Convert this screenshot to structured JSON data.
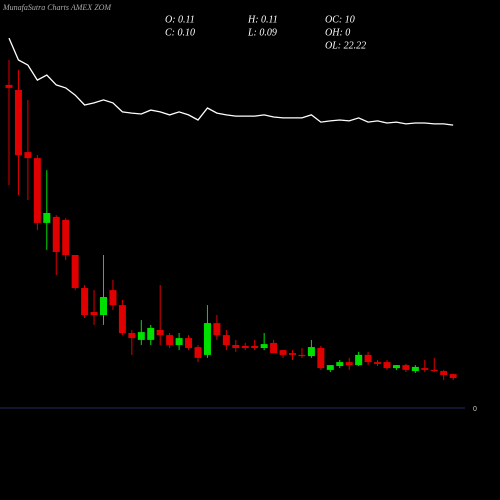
{
  "chart_data": {
    "type": "candlestick",
    "title": "MunafaSutra Charts AMEX  ZOM",
    "stats": [
      [
        "O: 0.11",
        "C: 0.10"
      ],
      [
        "H: 0.11",
        "L: 0.09"
      ],
      [
        "OC: 10",
        "OH: 0",
        "OL: 22.22"
      ]
    ],
    "ylim": [
      0,
      1.3
    ],
    "yticks": [
      0
    ],
    "up_color": "#00e000",
    "down_color": "#e00000",
    "line_color": "#ffffff",
    "open": [
      1.077,
      1.06,
      0.853,
      0.833,
      0.617,
      0.637,
      0.627,
      0.51,
      0.4,
      0.32,
      0.31,
      0.393,
      0.343,
      0.25,
      0.227,
      0.227,
      0.26,
      0.243,
      0.21,
      0.233,
      0.203,
      0.177,
      0.283,
      0.243,
      0.21,
      0.207,
      0.207,
      0.2,
      0.217,
      0.193,
      0.183,
      0.177,
      0.173,
      0.2,
      0.127,
      0.14,
      0.153,
      0.143,
      0.177,
      0.153,
      0.153,
      0.133,
      0.143,
      0.123,
      0.133,
      0.127,
      0.123,
      0.113
    ],
    "high": [
      1.16,
      1.127,
      1.027,
      0.843,
      0.793,
      0.643,
      0.633,
      0.51,
      0.41,
      0.393,
      0.51,
      0.427,
      0.36,
      0.26,
      0.293,
      0.277,
      0.41,
      0.25,
      0.25,
      0.243,
      0.21,
      0.343,
      0.31,
      0.26,
      0.227,
      0.217,
      0.227,
      0.25,
      0.227,
      0.193,
      0.193,
      0.2,
      0.227,
      0.207,
      0.143,
      0.16,
      0.167,
      0.187,
      0.187,
      0.16,
      0.16,
      0.143,
      0.147,
      0.143,
      0.16,
      0.167,
      0.127,
      0.113
    ],
    "low": [
      0.743,
      0.71,
      0.693,
      0.593,
      0.527,
      0.443,
      0.493,
      0.393,
      0.3,
      0.277,
      0.277,
      0.327,
      0.243,
      0.177,
      0.21,
      0.21,
      0.21,
      0.2,
      0.193,
      0.193,
      0.153,
      0.167,
      0.227,
      0.193,
      0.187,
      0.193,
      0.193,
      0.193,
      0.183,
      0.167,
      0.16,
      0.167,
      0.167,
      0.127,
      0.12,
      0.133,
      0.127,
      0.14,
      0.143,
      0.14,
      0.127,
      0.127,
      0.12,
      0.117,
      0.12,
      0.12,
      0.093,
      0.093
    ],
    "close": [
      1.067,
      0.843,
      0.833,
      0.617,
      0.65,
      0.52,
      0.51,
      0.4,
      0.31,
      0.31,
      0.37,
      0.343,
      0.25,
      0.233,
      0.253,
      0.267,
      0.243,
      0.21,
      0.233,
      0.2,
      0.167,
      0.283,
      0.243,
      0.21,
      0.2,
      0.2,
      0.2,
      0.213,
      0.183,
      0.177,
      0.177,
      0.173,
      0.203,
      0.133,
      0.143,
      0.153,
      0.143,
      0.177,
      0.153,
      0.147,
      0.133,
      0.143,
      0.127,
      0.137,
      0.127,
      0.123,
      0.11,
      0.1
    ],
    "line_values": [
      1.233,
      1.16,
      1.143,
      1.093,
      1.11,
      1.077,
      1.067,
      1.043,
      1.01,
      1.017,
      1.027,
      1.017,
      0.987,
      0.983,
      0.98,
      0.993,
      0.987,
      0.977,
      0.987,
      0.977,
      0.96,
      1.0,
      0.983,
      0.977,
      0.973,
      0.973,
      0.973,
      0.977,
      0.97,
      0.967,
      0.967,
      0.967,
      0.977,
      0.953,
      0.957,
      0.96,
      0.957,
      0.967,
      0.953,
      0.957,
      0.95,
      0.953,
      0.947,
      0.95,
      0.95,
      0.947,
      0.947,
      0.943
    ]
  }
}
